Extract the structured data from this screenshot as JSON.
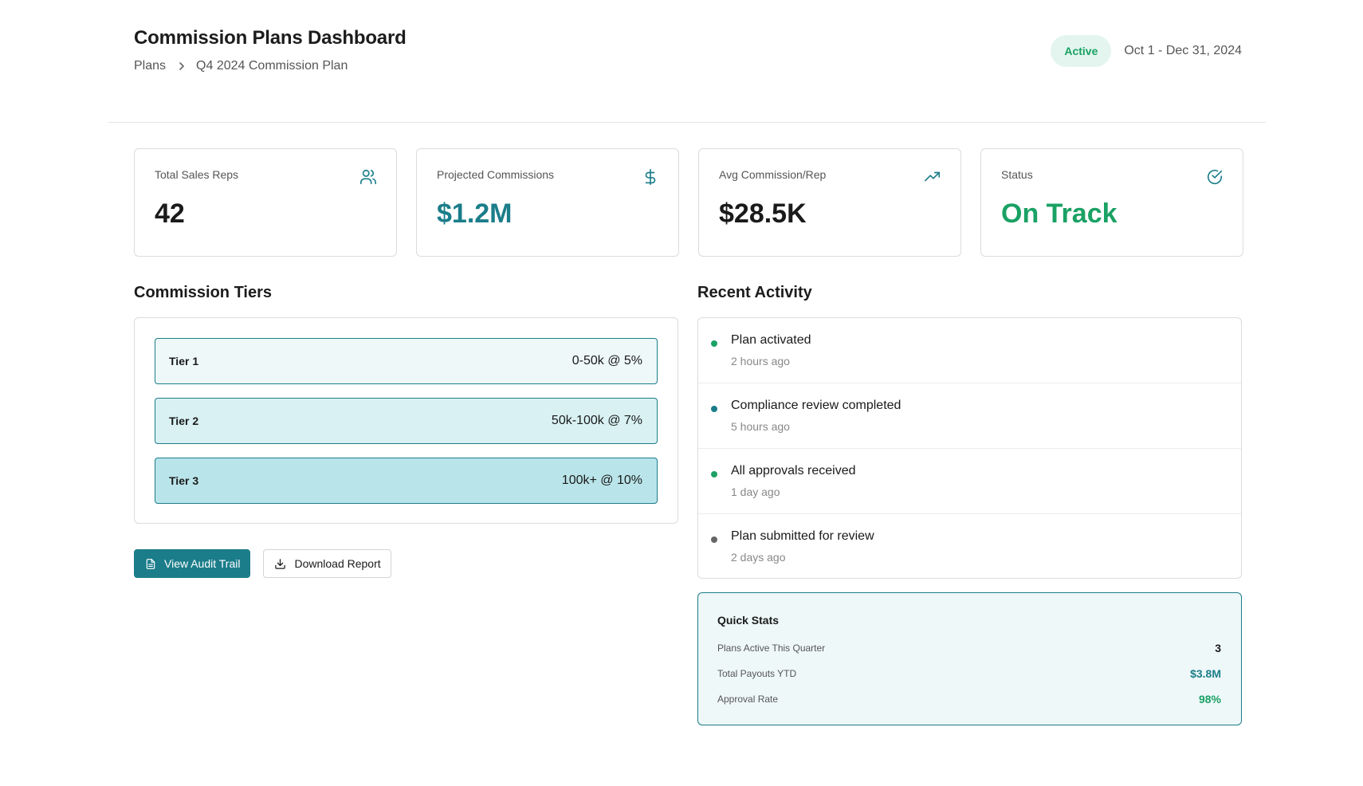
{
  "header": {
    "title": "Commission Plans Dashboard",
    "breadcrumb": [
      "Plans",
      "Q4 2024 Commission Plan"
    ],
    "status": "Active",
    "date_range": "Oct 1 - Dec 31, 2024"
  },
  "stats": [
    {
      "label": "Total Sales Reps",
      "value": "42",
      "icon": "users-icon"
    },
    {
      "label": "Projected Commissions",
      "value": "$1.2M",
      "icon": "dollar-icon"
    },
    {
      "label": "Avg Commission/Rep",
      "value": "$28.5K",
      "icon": "trending-up-icon"
    },
    {
      "label": "Status",
      "value": "On Track",
      "icon": "check-circle-icon"
    }
  ],
  "tiers_section": {
    "title": "Commission Tiers",
    "tiers": [
      {
        "name": "Tier 1",
        "range": "0-50k @ 5%"
      },
      {
        "name": "Tier 2",
        "range": "50k-100k @ 7%"
      },
      {
        "name": "Tier 3",
        "range": "100k+ @ 10%"
      }
    ]
  },
  "actions": {
    "audit_label": "View Audit Trail",
    "download_label": "Download Report"
  },
  "activity_section": {
    "title": "Recent Activity",
    "items": [
      {
        "title": "Plan activated",
        "time": "2 hours ago",
        "dot_color": "#1aa164"
      },
      {
        "title": "Compliance review completed",
        "time": "5 hours ago",
        "dot_color": "#1b7d8a"
      },
      {
        "title": "All approvals received",
        "time": "1 day ago",
        "dot_color": "#1aa164"
      },
      {
        "title": "Plan submitted for review",
        "time": "2 days ago",
        "dot_color": "#666666"
      }
    ]
  },
  "quick_stats": {
    "title": "Quick Stats",
    "rows": [
      {
        "label": "Plans Active This Quarter",
        "value": "3"
      },
      {
        "label": "Total Payouts YTD",
        "value": "$3.8M"
      },
      {
        "label": "Approval Rate",
        "value": "98%"
      }
    ]
  },
  "colors": {
    "accent": "#1b7d8a",
    "success": "#1aa164"
  }
}
